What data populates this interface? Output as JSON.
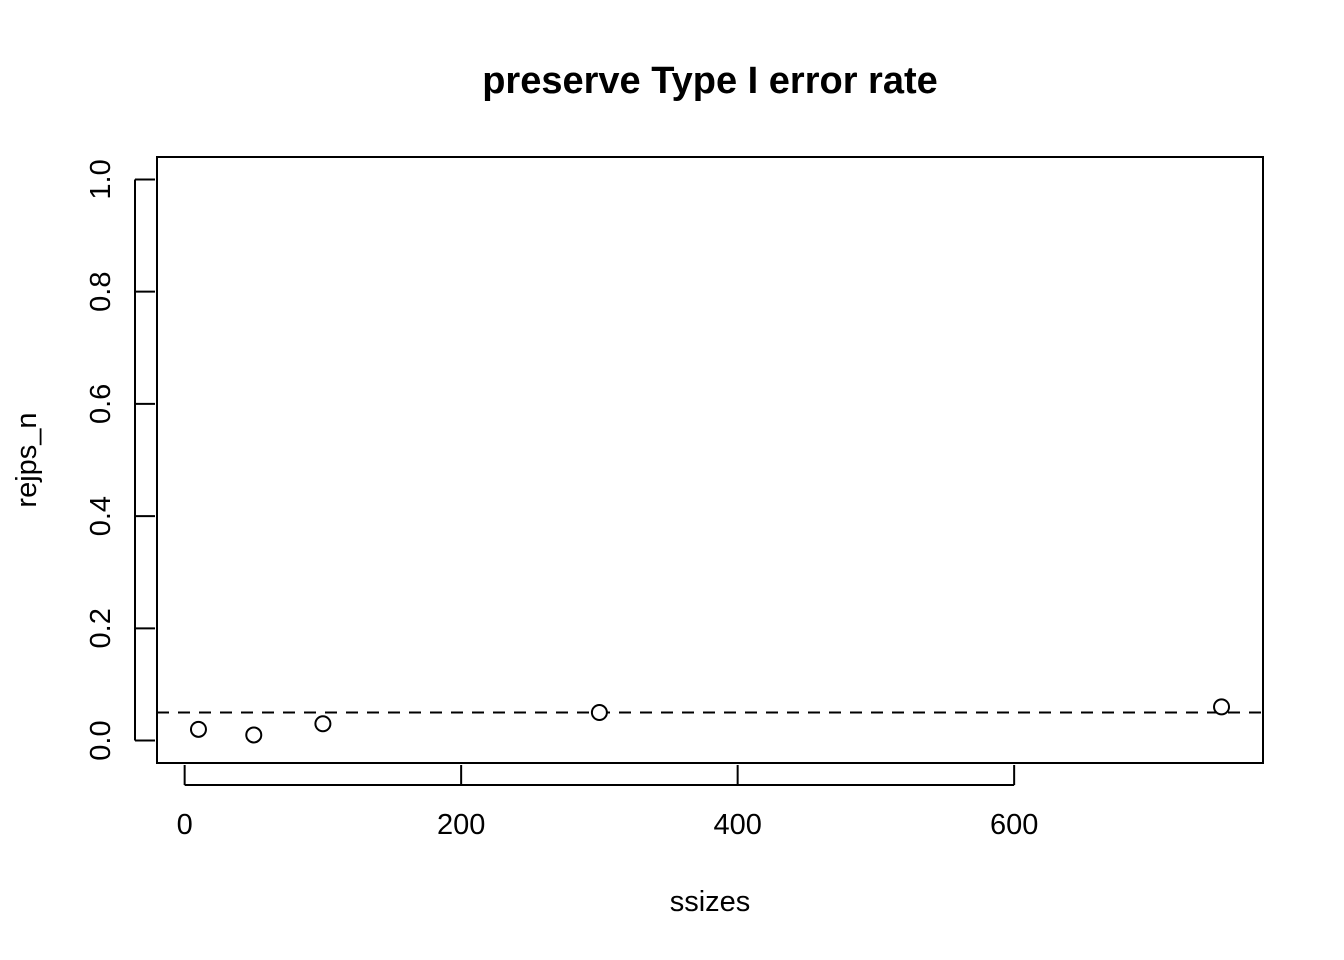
{
  "chart_data": {
    "type": "scatter",
    "title": "preserve Type I error rate",
    "xlabel": "ssizes",
    "ylabel": "rejps_n",
    "xlim": [
      -20,
      780
    ],
    "ylim": [
      -0.04,
      1.04
    ],
    "x_ticks": [
      0,
      200,
      400,
      600
    ],
    "x_tick_labels": [
      "0",
      "200",
      "400",
      "600"
    ],
    "y_ticks": [
      0,
      0.2,
      0.4,
      0.6,
      0.8,
      1.0
    ],
    "y_tick_labels": [
      "0.0",
      "0.2",
      "0.4",
      "0.6",
      "0.8",
      "1.0"
    ],
    "grid": false,
    "reference_line": {
      "y": 0.05,
      "style": "dashed"
    },
    "points": [
      {
        "x": 10,
        "y": 0.02
      },
      {
        "x": 50,
        "y": 0.01
      },
      {
        "x": 100,
        "y": 0.03
      },
      {
        "x": 300,
        "y": 0.05
      },
      {
        "x": 750,
        "y": 0.06
      }
    ]
  }
}
